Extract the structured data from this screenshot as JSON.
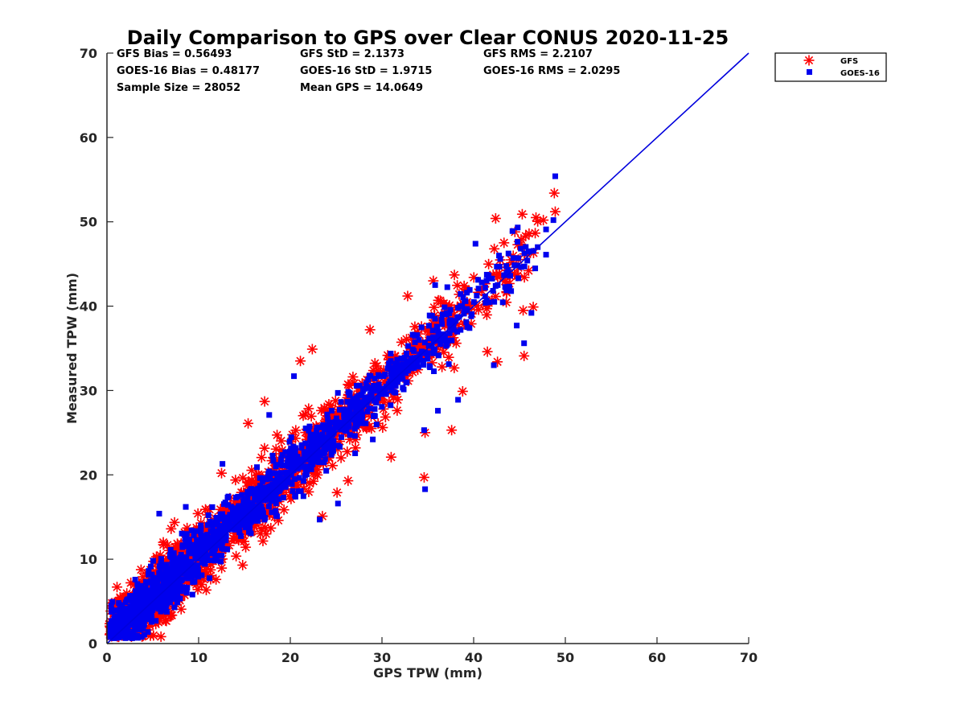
{
  "chart_data": {
    "type": "scatter",
    "title": "Daily Comparison to GPS over Clear CONUS 2020-11-25",
    "xlabel": "GPS TPW (mm)",
    "ylabel": "Measured TPW (mm)",
    "xlim": [
      0,
      70
    ],
    "ylim": [
      0,
      70
    ],
    "xticks": [
      "0",
      "10",
      "20",
      "30",
      "40",
      "50",
      "60",
      "70"
    ],
    "yticks": [
      "0",
      "10",
      "20",
      "30",
      "40",
      "50",
      "60",
      "70"
    ],
    "grid": false,
    "legend_position": "outside top-right",
    "stats": {
      "gfs_bias": "GFS Bias = 0.56493",
      "gfs_std": "GFS StD = 2.1373",
      "gfs_rms": "GFS RMS = 2.2107",
      "goes_bias": "GOES-16 Bias = 0.48177",
      "goes_std": "GOES-16 StD = 1.9715",
      "goes_rms": "GOES-16 RMS = 2.0295",
      "sample_size": "Sample Size = 28052",
      "mean_gps": "Mean GPS = 14.0649"
    },
    "one_to_one_line": {
      "x": [
        0,
        70
      ],
      "y": [
        0,
        70
      ],
      "color": "#0000dd"
    },
    "series": [
      {
        "name": "GFS",
        "marker": "asterisk",
        "color": "#ff0000",
        "bias": 0.56493,
        "std": 2.1373,
        "outliers": [
          [
            48.8,
            53.4
          ],
          [
            48.9,
            51.2
          ],
          [
            47.6,
            50.2
          ],
          [
            42.4,
            50.4
          ],
          [
            44.5,
            48.8
          ],
          [
            45.3,
            50.9
          ],
          [
            46.8,
            50.5
          ],
          [
            46.5,
            39.9
          ],
          [
            45.4,
            39.5
          ],
          [
            42.6,
            33.4
          ],
          [
            45.5,
            34.1
          ],
          [
            41.5,
            34.6
          ],
          [
            38.1,
            35.6
          ],
          [
            34.6,
            19.7
          ],
          [
            38.8,
            29.9
          ],
          [
            37.6,
            25.3
          ],
          [
            34.7,
            25.0
          ],
          [
            31.0,
            22.1
          ],
          [
            28.7,
            37.2
          ],
          [
            32.8,
            41.2
          ],
          [
            35.6,
            43.0
          ],
          [
            37.9,
            43.7
          ],
          [
            21.1,
            33.5
          ],
          [
            22.4,
            34.9
          ],
          [
            17.2,
            28.7
          ],
          [
            15.4,
            26.1
          ],
          [
            23.5,
            15.1
          ],
          [
            16.4,
            18.9
          ],
          [
            18.7,
            14.6
          ],
          [
            14.8,
            9.3
          ],
          [
            11.9,
            7.6
          ],
          [
            4.4,
            8.3
          ],
          [
            2.6,
            7.2
          ],
          [
            1.1,
            6.7
          ],
          [
            7.0,
            13.6
          ],
          [
            12.5,
            20.2
          ],
          [
            26.3,
            19.3
          ],
          [
            25.1,
            17.9
          ]
        ]
      },
      {
        "name": "GOES-16",
        "marker": "square",
        "color": "#0000ee",
        "bias": 0.48177,
        "std": 1.9715,
        "outliers": [
          [
            48.9,
            55.4
          ],
          [
            48.7,
            50.2
          ],
          [
            47.9,
            49.1
          ],
          [
            47.9,
            46.1
          ],
          [
            40.2,
            47.4
          ],
          [
            38.3,
            28.9
          ],
          [
            34.7,
            18.3
          ],
          [
            44.7,
            37.7
          ],
          [
            45.5,
            35.6
          ],
          [
            46.3,
            39.2
          ],
          [
            42.2,
            33.0
          ],
          [
            35.8,
            42.5
          ],
          [
            34.6,
            25.3
          ],
          [
            8.6,
            16.2
          ],
          [
            12.6,
            21.3
          ],
          [
            17.7,
            27.1
          ],
          [
            20.4,
            31.7
          ],
          [
            5.7,
            15.4
          ],
          [
            25.2,
            16.6
          ],
          [
            23.2,
            14.7
          ],
          [
            29.0,
            24.2
          ],
          [
            36.1,
            27.6
          ]
        ]
      }
    ]
  }
}
